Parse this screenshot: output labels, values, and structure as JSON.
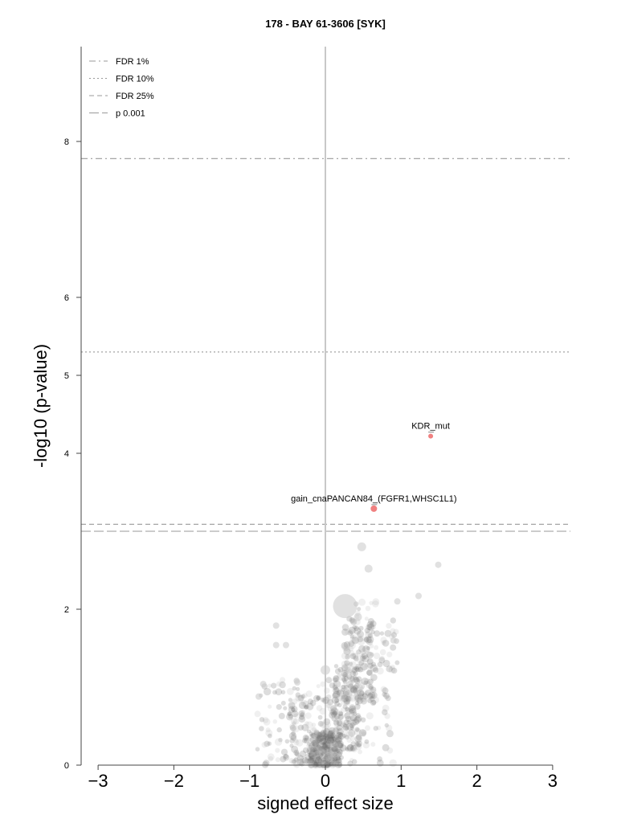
{
  "chart_data": {
    "type": "scatter",
    "title": "178 - BAY 61-3606 [SYK]",
    "xlabel": "signed effect size",
    "ylabel": "-log10 (p-value)",
    "xlim": [
      -3.2,
      3.25
    ],
    "ylim": [
      0,
      9.2
    ],
    "xticks": [
      "-3",
      "-2",
      "-1",
      "0",
      "1",
      "2",
      "3"
    ],
    "yticks": [
      "0",
      "2",
      "4",
      "5",
      "6",
      "8"
    ],
    "grid": false,
    "legend_position": "top-left",
    "thresholds": [
      {
        "name": "FDR 1%",
        "value": 7.78,
        "style": "dashdot"
      },
      {
        "name": "FDR 10%",
        "value": 5.3,
        "style": "dotted"
      },
      {
        "name": "FDR 25%",
        "value": 3.09,
        "style": "dashed"
      },
      {
        "name": "p 0.001",
        "value": 3.0,
        "style": "longdash"
      }
    ],
    "highlighted": [
      {
        "label": "KDR_mut",
        "x": 1.39,
        "y": 4.22,
        "color": "#f08080"
      },
      {
        "label": "gain_cnaPANCAN84_(FGFR1,WHSC1L1)",
        "x": 0.64,
        "y": 3.29,
        "color": "#f08080"
      }
    ],
    "background_points": [
      {
        "x": 0.26,
        "y": 2.04,
        "size": 28
      },
      {
        "x": 0.48,
        "y": 2.8,
        "size": 9
      },
      {
        "x": 0.57,
        "y": 2.52,
        "size": 8
      },
      {
        "x": 1.49,
        "y": 2.57,
        "size": 6
      },
      {
        "x": 1.23,
        "y": 2.17,
        "size": 6
      },
      {
        "x": 0.43,
        "y": 1.9,
        "size": 8
      },
      {
        "x": 0.0,
        "y": 1.22,
        "size": 10
      },
      {
        "x": -0.37,
        "y": 1.06,
        "size": 6
      },
      {
        "x": -0.65,
        "y": 1.79,
        "size": 6
      },
      {
        "x": -0.65,
        "y": 1.54,
        "size": 6
      },
      {
        "x": -0.52,
        "y": 1.54,
        "size": 6
      },
      {
        "x": -0.88,
        "y": 0.88,
        "size": 6
      },
      {
        "x": -0.82,
        "y": 1.04,
        "size": 6
      },
      {
        "x": 0.95,
        "y": 2.1,
        "size": 6
      },
      {
        "x": 0.9,
        "y": 1.6,
        "size": 6
      }
    ],
    "cloud": [
      {
        "x0": -0.2,
        "x1": 0.2,
        "y0": 0.0,
        "y1": 0.45,
        "n": 260
      },
      {
        "x0": -0.5,
        "x1": 0.15,
        "y0": 0.0,
        "y1": 0.9,
        "n": 150
      },
      {
        "x0": 0.1,
        "x1": 0.45,
        "y0": 0.2,
        "y1": 1.3,
        "n": 170
      },
      {
        "x0": 0.25,
        "x1": 0.65,
        "y0": 0.8,
        "y1": 1.9,
        "n": 130
      },
      {
        "x0": -0.9,
        "x1": 0.9,
        "y0": 0.0,
        "y1": 1.1,
        "n": 160
      },
      {
        "x0": 0.35,
        "x1": 0.95,
        "y0": 1.2,
        "y1": 2.1,
        "n": 60
      }
    ]
  }
}
